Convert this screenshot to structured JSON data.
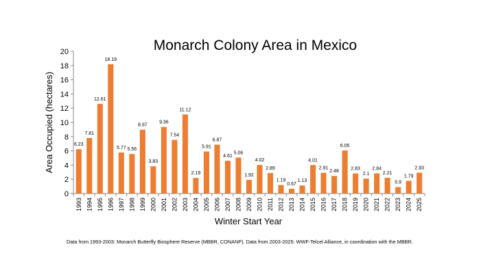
{
  "chart_data": {
    "type": "bar",
    "title": "Monarch Colony Area in Mexico",
    "xlabel": "Winter Start Year",
    "ylabel": "Area Occupied (hectares)",
    "ylim": [
      0,
      20
    ],
    "yticks": [
      0,
      2,
      4,
      6,
      8,
      10,
      12,
      14,
      16,
      18,
      20
    ],
    "grid": false,
    "bar_color": "#ED7D31",
    "categories": [
      "1993",
      "1994",
      "1995",
      "1996",
      "1997",
      "1998",
      "1999",
      "2000",
      "2001",
      "2002",
      "2003",
      "2004",
      "2005",
      "2006",
      "2007",
      "2008",
      "2009",
      "2010",
      "2011",
      "2012",
      "2013",
      "2014",
      "2015",
      "2016",
      "2017",
      "2018",
      "2019",
      "2020",
      "2021",
      "2022",
      "2023",
      "2024",
      "2025"
    ],
    "values": [
      6.23,
      7.81,
      12.61,
      18.19,
      5.77,
      5.56,
      8.97,
      3.83,
      9.36,
      7.54,
      11.12,
      2.19,
      5.91,
      6.87,
      4.61,
      5.06,
      1.92,
      4.02,
      2.89,
      1.19,
      0.67,
      1.13,
      4.01,
      2.91,
      2.48,
      6.05,
      2.83,
      2.1,
      2.84,
      2.21,
      0.9,
      1.79,
      2.93
    ],
    "data_labels": [
      "6.23",
      "7.81",
      "12.61",
      "18.19",
      "5.77",
      "5.56",
      "8.97",
      "3.83",
      "9.36",
      "7.54",
      "11.12",
      "2.19",
      "5.91",
      "6.87",
      "4.61",
      "5.06",
      "1.92",
      "4.02",
      "2.89",
      "1.19",
      "0.67",
      "1.13",
      "4.01",
      "2.91",
      "2.48",
      "6.05",
      "2.83",
      "2.1",
      "2.84",
      "2.21",
      "0.9",
      "1.79",
      "2.93"
    ]
  },
  "footnote": "Data from 1993-2003: Monarch Butterfly Biosphere Reserve (MBBR, CONANP). Data from 2003-2025: WWF-Telcel Alliance, in coordination with the MBBR."
}
